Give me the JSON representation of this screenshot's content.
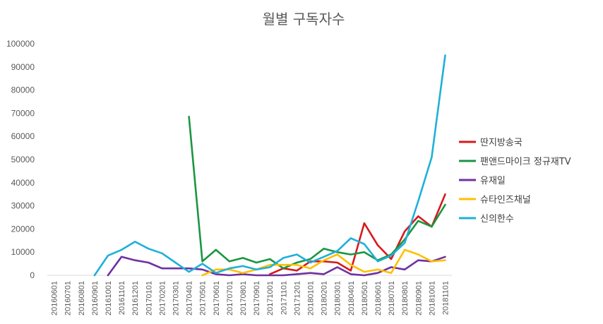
{
  "chart_data": {
    "type": "line",
    "title": "월별 구독자수",
    "xlabel": "",
    "ylabel": "",
    "ylim": [
      0,
      100000
    ],
    "yticks": [
      0,
      10000,
      20000,
      30000,
      40000,
      50000,
      60000,
      70000,
      80000,
      90000,
      100000
    ],
    "grid": false,
    "legend_position": "right",
    "categories": [
      "20160601",
      "20160701",
      "20160801",
      "20160901",
      "20161001",
      "20161101",
      "20161201",
      "20170101",
      "20170201",
      "20170301",
      "20170401",
      "20170501",
      "20170601",
      "20170701",
      "20170801",
      "20170901",
      "20171001",
      "20171101",
      "20171201",
      "20180101",
      "20180201",
      "20180301",
      "20180401",
      "20180501",
      "20180601",
      "20180701",
      "20180801",
      "20180901",
      "20181001",
      "20181101"
    ],
    "series": [
      {
        "name": "딴지방송국",
        "color": "#d7191c",
        "values": [
          null,
          null,
          null,
          null,
          null,
          null,
          null,
          null,
          null,
          null,
          null,
          null,
          null,
          null,
          null,
          null,
          500,
          3000,
          2000,
          6000,
          6000,
          5500,
          2000,
          22500,
          13000,
          7000,
          19000,
          25500,
          21000,
          35000
        ]
      },
      {
        "name": "팬앤드마이크 정규재TV",
        "color": "#1a9641",
        "values": [
          null,
          null,
          null,
          null,
          null,
          null,
          null,
          null,
          null,
          null,
          68500,
          6000,
          11000,
          6000,
          7500,
          5500,
          7000,
          3000,
          5500,
          7000,
          11500,
          10000,
          9000,
          10000,
          6500,
          9000,
          15500,
          23500,
          21000,
          30500
        ]
      },
      {
        "name": "유재일",
        "color": "#7030a0",
        "values": [
          null,
          null,
          null,
          null,
          0,
          8000,
          6500,
          5500,
          3000,
          3000,
          3000,
          2500,
          500,
          0,
          500,
          0,
          0,
          0,
          500,
          1000,
          500,
          3500,
          500,
          0,
          1000,
          3500,
          2500,
          6500,
          6000,
          8000
        ]
      },
      {
        "name": "슈타인즈채널",
        "color": "#ffc000",
        "values": [
          null,
          null,
          null,
          null,
          null,
          null,
          null,
          null,
          null,
          null,
          null,
          0,
          2500,
          2500,
          1000,
          2500,
          4500,
          4500,
          4500,
          3000,
          6500,
          9000,
          4500,
          1500,
          2500,
          1000,
          11000,
          9000,
          6000,
          6500
        ]
      },
      {
        "name": "신의한수",
        "color": "#1fb0d8",
        "values": [
          null,
          null,
          null,
          0,
          8500,
          11000,
          14500,
          11500,
          9500,
          5500,
          1500,
          5000,
          1000,
          3000,
          4000,
          2500,
          3500,
          7500,
          9000,
          5500,
          8000,
          10500,
          16000,
          13500,
          6000,
          8500,
          14000,
          32000,
          51000,
          95000
        ]
      }
    ]
  }
}
